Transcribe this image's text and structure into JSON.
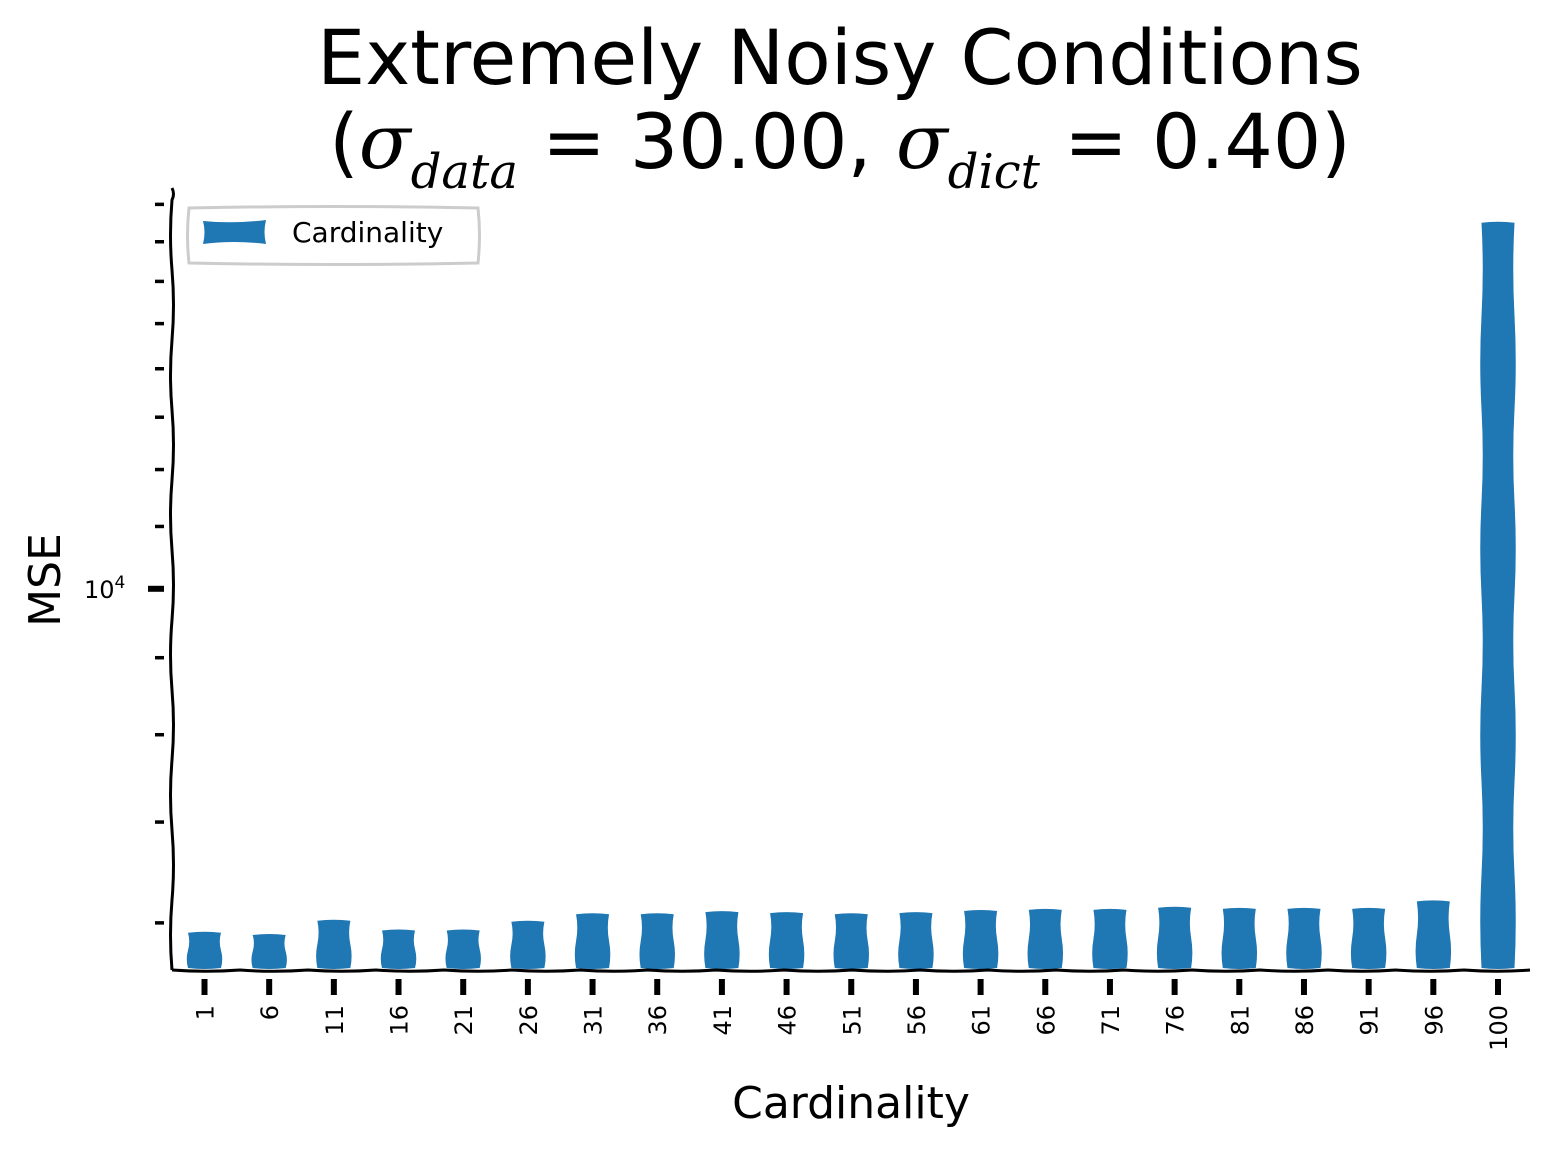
{
  "chart_data": {
    "type": "bar",
    "title_main": "Extremely Noisy Conditions",
    "title_params": {
      "open": "(",
      "sym1": "σ",
      "sub1": "data",
      "eq1": " = 30.00, ",
      "sym2": "σ",
      "sub2": "dict",
      "eq2": " = 0.40)"
    },
    "xlabel": "Cardinality",
    "ylabel": "MSE",
    "yscale": "log",
    "y_major_tick": {
      "base": "10",
      "exponent": "4",
      "value": 10000
    },
    "ylim": [
      5600,
      18400
    ],
    "legend": {
      "label": "Cardinality",
      "placement": "upper-left"
    },
    "color": "#1f77b4",
    "categories": [
      "1",
      "6",
      "11",
      "16",
      "21",
      "26",
      "31",
      "36",
      "41",
      "46",
      "51",
      "56",
      "61",
      "66",
      "71",
      "76",
      "81",
      "86",
      "91",
      "96",
      "100"
    ],
    "values": [
      5910,
      5890,
      6020,
      5930,
      5930,
      6010,
      6080,
      6080,
      6100,
      6090,
      6080,
      6090,
      6110,
      6120,
      6120,
      6140,
      6130,
      6130,
      6130,
      6200,
      17500
    ],
    "grid": false
  }
}
